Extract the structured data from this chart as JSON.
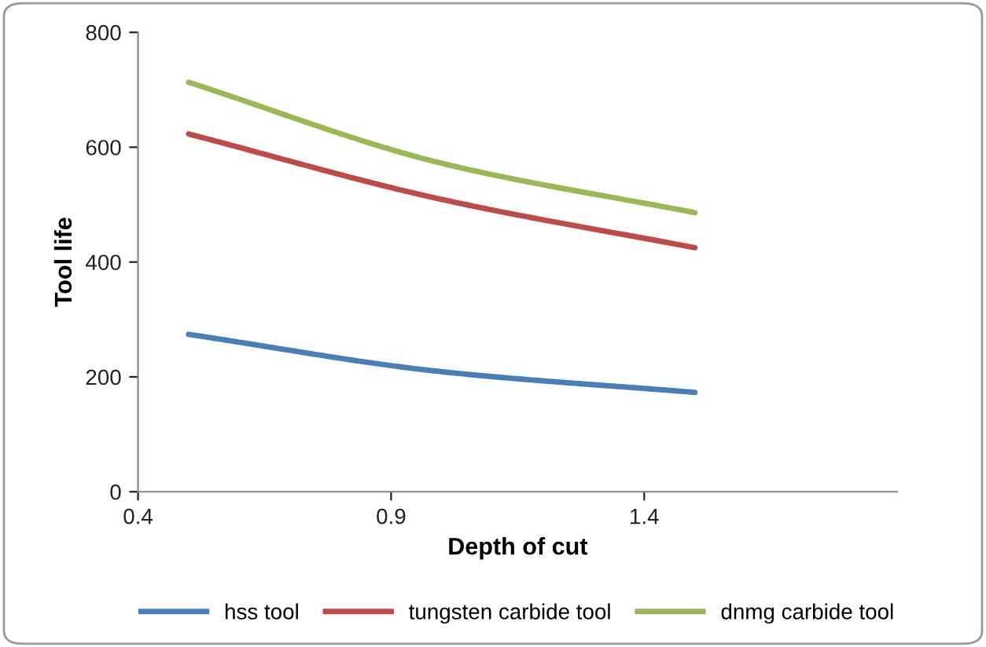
{
  "chart_data": {
    "type": "line",
    "xlabel": "Depth of cut",
    "ylabel": "Tool life",
    "x": [
      0.5,
      1.0,
      1.5
    ],
    "series": [
      {
        "name": "hss tool",
        "color": "#4a7ebb",
        "values": [
          274,
          209,
          173
        ]
      },
      {
        "name": "tungsten carbide tool",
        "color": "#be4b48",
        "values": [
          623,
          509,
          425
        ]
      },
      {
        "name": "dnmg carbide tool",
        "color": "#98b954",
        "values": [
          713,
          572,
          486
        ]
      }
    ],
    "xlim": [
      0.4,
      1.9
    ],
    "xticks": [
      0.4,
      0.9,
      1.4
    ],
    "ylim": [
      0,
      800
    ],
    "yticks": [
      0,
      200,
      400,
      600,
      800
    ],
    "grid": false,
    "legend": "bottom",
    "marker": "none",
    "line_style": "solid"
  }
}
